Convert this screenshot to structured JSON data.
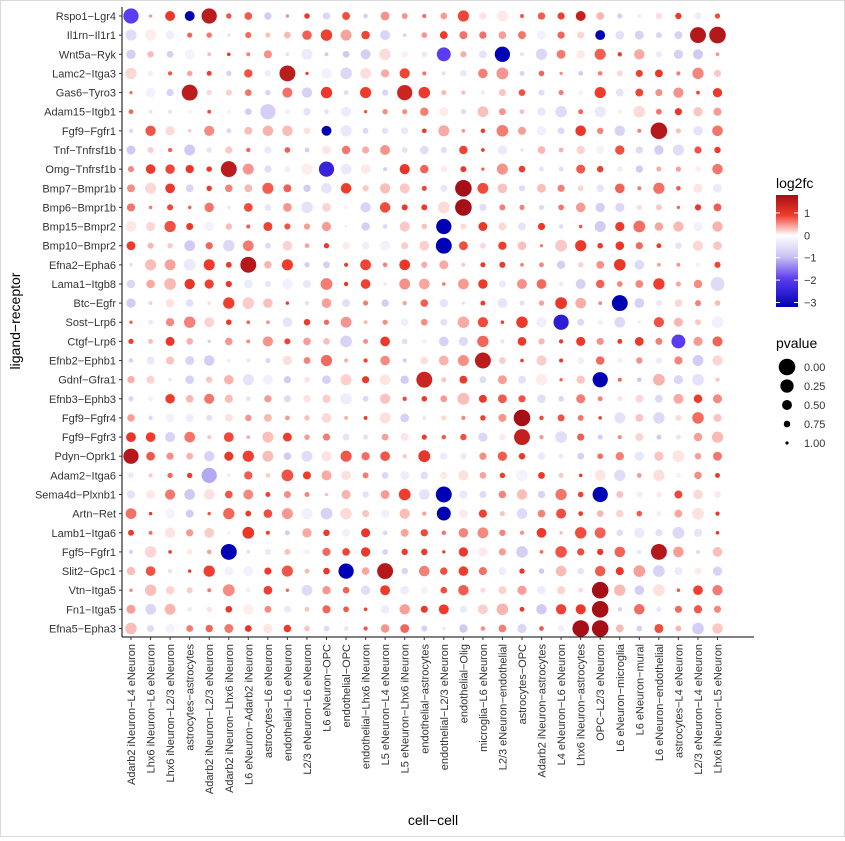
{
  "chart_data": {
    "type": "scatter",
    "xlabel": "cell−cell",
    "ylabel": "ligand−receptor",
    "x_categories": [
      "Adarb2 iNeuron−L4 eNeuron",
      "Lhx6 iNeuron−L6 eNeuron",
      "Lhx6 iNeuron−L2/3 eNeuron",
      "astrocytes−astrocytes",
      "Adarb2 iNeuron−L2/3 eNeuron",
      "Adarb2 iNeuron−Lhx6 iNeuron",
      "L6 eNeuron−Adarb2 iNeuron",
      "astrocytes−L6 eNeuron",
      "endothelial−L6 eNeuron",
      "L2/3 eNeuron−L6 eNeuron",
      "L6 eNeuron−OPC",
      "endothelial−OPC",
      "endothelial−Lhx6 iNeuron",
      "L5 eNeuron−L4 eNeuron",
      "L5 eNeuron−Lhx6 iNeuron",
      "endothelial−astrocytes",
      "endothelial−L2/3 eNeuron",
      "endothelial−Olig",
      "microglia−L6 eNeuron",
      "L2/3 eNeuron−endothelial",
      "astrocytes−OPC",
      "Adarb2 iNeuron−astrocytes",
      "L4 eNeuron−L6 eNeuron",
      "Lhx6 iNeuron−astrocytes",
      "OPC−L2/3 eNeuron",
      "L6 eNeuron−microglia",
      "L6 eNeuron−mural",
      "L6 eNeuron−endothelial",
      "astrocytes−L4 eNeuron",
      "L2/3 eNeuron−L4 eNeuron",
      "Lhx6 iNeuron−L5 eNeuron"
    ],
    "y_categories": [
      "Rspo1−Lgr4",
      "Il1rn−Il1r1",
      "Wnt5a−Ryk",
      "Lamc2−Itga3",
      "Gas6−Tyro3",
      "Adam15−Itgb1",
      "Fgf9−Fgfr1",
      "Tnf−Tnfrsf1b",
      "Omg−Tnfrsf1b",
      "Bmp7−Bmpr1b",
      "Bmp6−Bmpr1b",
      "Bmp15−Bmpr2",
      "Bmp10−Bmpr2",
      "Efna2−Epha6",
      "Lama1−Itgb8",
      "Btc−Egfr",
      "Sost−Lrp6",
      "Ctgf−Lrp6",
      "Efnb2−Ephb1",
      "Gdnf−Gfra1",
      "Efnb3−Ephb3",
      "Fgf9−Fgfr4",
      "Fgf9−Fgfr3",
      "Pdyn−Oprk1",
      "Adam2−Itga6",
      "Sema4d−Plxnb1",
      "Artn−Ret",
      "Lamb1−Itga6",
      "Fgf5−Fgfr1",
      "Slit2−Gpc1",
      "Vtn−Itga5",
      "Fn1−Itga5",
      "Efna5−Epha3"
    ],
    "color_legend": {
      "title": "log2fc",
      "ticks": [
        "1",
        "0",
        "−1",
        "−2",
        "−3"
      ],
      "tick_values": [
        1,
        0,
        -1,
        -2,
        -3
      ],
      "range": [
        -3.2,
        1.8
      ],
      "colors": {
        "high": "#a50f15",
        "mid": "#ffffff",
        "low": "#0000b4"
      }
    },
    "size_legend": {
      "title": "pvalue",
      "labels": [
        "0.00",
        "0.25",
        "0.50",
        "0.75",
        "1.00"
      ],
      "values": [
        0,
        0.25,
        0.5,
        0.75,
        1
      ]
    },
    "highlight_points": [
      {
        "x": 0,
        "y": 0,
        "log2fc": -2.0,
        "pvalue": 0.1
      },
      {
        "x": 3,
        "y": 0,
        "log2fc": -3.0,
        "pvalue": 0.5
      },
      {
        "x": 4,
        "y": 0,
        "log2fc": 1.3,
        "pvalue": 0.1
      },
      {
        "x": 23,
        "y": 0,
        "log2fc": 1.2,
        "pvalue": 0.5
      },
      {
        "x": 24,
        "y": 1,
        "log2fc": -3.0,
        "pvalue": 0.5
      },
      {
        "x": 29,
        "y": 1,
        "log2fc": 1.4,
        "pvalue": 0.05
      },
      {
        "x": 30,
        "y": 1,
        "log2fc": 1.4,
        "pvalue": 0.0
      },
      {
        "x": 19,
        "y": 2,
        "log2fc": -3.0,
        "pvalue": 0.1
      },
      {
        "x": 16,
        "y": 2,
        "log2fc": -2.0,
        "pvalue": 0.2
      },
      {
        "x": 8,
        "y": 3,
        "log2fc": 1.3,
        "pvalue": 0.05
      },
      {
        "x": 3,
        "y": 4,
        "log2fc": 1.3,
        "pvalue": 0.05
      },
      {
        "x": 14,
        "y": 4,
        "log2fc": 1.1,
        "pvalue": 0.1
      },
      {
        "x": 7,
        "y": 5,
        "log2fc": -0.8,
        "pvalue": 0.1
      },
      {
        "x": 10,
        "y": 6,
        "log2fc": -3.0,
        "pvalue": 0.5
      },
      {
        "x": 27,
        "y": 6,
        "log2fc": 1.4,
        "pvalue": 0.0
      },
      {
        "x": 5,
        "y": 8,
        "log2fc": 1.3,
        "pvalue": 0.05
      },
      {
        "x": 10,
        "y": 8,
        "log2fc": -2.4,
        "pvalue": 0.1
      },
      {
        "x": 17,
        "y": 9,
        "log2fc": 1.8,
        "pvalue": 0.0
      },
      {
        "x": 17,
        "y": 10,
        "log2fc": 1.8,
        "pvalue": 0.0
      },
      {
        "x": 16,
        "y": 11,
        "log2fc": -3.0,
        "pvalue": 0.1
      },
      {
        "x": 16,
        "y": 12,
        "log2fc": -3.0,
        "pvalue": 0.05
      },
      {
        "x": 6,
        "y": 13,
        "log2fc": 1.4,
        "pvalue": 0.05
      },
      {
        "x": 30,
        "y": 14,
        "log2fc": -0.6,
        "pvalue": 0.2
      },
      {
        "x": 25,
        "y": 15,
        "log2fc": -3.0,
        "pvalue": 0.05
      },
      {
        "x": 22,
        "y": 16,
        "log2fc": -2.5,
        "pvalue": 0.1
      },
      {
        "x": 28,
        "y": 17,
        "log2fc": -2.0,
        "pvalue": 0.2
      },
      {
        "x": 18,
        "y": 18,
        "log2fc": 1.3,
        "pvalue": 0.05
      },
      {
        "x": 15,
        "y": 19,
        "log2fc": 1.1,
        "pvalue": 0.05
      },
      {
        "x": 24,
        "y": 19,
        "log2fc": -3.0,
        "pvalue": 0.1
      },
      {
        "x": 20,
        "y": 21,
        "log2fc": 1.8,
        "pvalue": 0.0
      },
      {
        "x": 20,
        "y": 22,
        "log2fc": 1.2,
        "pvalue": 0.05
      },
      {
        "x": 0,
        "y": 23,
        "log2fc": 1.4,
        "pvalue": 0.1
      },
      {
        "x": 4,
        "y": 24,
        "log2fc": -1.2,
        "pvalue": 0.1
      },
      {
        "x": 16,
        "y": 25,
        "log2fc": -3.0,
        "pvalue": 0.05
      },
      {
        "x": 24,
        "y": 25,
        "log2fc": -3.0,
        "pvalue": 0.1
      },
      {
        "x": 16,
        "y": 26,
        "log2fc": -3.0,
        "pvalue": 0.2
      },
      {
        "x": 5,
        "y": 28,
        "log2fc": -3.0,
        "pvalue": 0.05
      },
      {
        "x": 27,
        "y": 28,
        "log2fc": 1.4,
        "pvalue": 0.05
      },
      {
        "x": 11,
        "y": 29,
        "log2fc": -3.0,
        "pvalue": 0.1
      },
      {
        "x": 13,
        "y": 29,
        "log2fc": 1.4,
        "pvalue": 0.05
      },
      {
        "x": 24,
        "y": 30,
        "log2fc": 1.8,
        "pvalue": 0.0
      },
      {
        "x": 24,
        "y": 31,
        "log2fc": 1.8,
        "pvalue": 0.0
      },
      {
        "x": 23,
        "y": 32,
        "log2fc": 1.6,
        "pvalue": 0.0
      },
      {
        "x": 24,
        "y": 32,
        "log2fc": 1.8,
        "pvalue": 0.0
      }
    ],
    "grid": false
  }
}
